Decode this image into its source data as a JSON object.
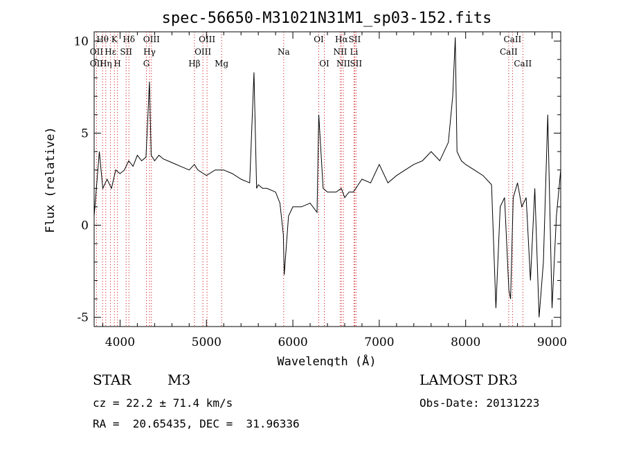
{
  "chart_data": {
    "type": "line",
    "title": "spec-56650-M31021N31M1_sp03-152.fits",
    "xlabel": "Wavelength (Å)",
    "ylabel": "Flux (relative)",
    "xlim": [
      3700,
      9100
    ],
    "ylim": [
      -5.5,
      10.5
    ],
    "x_ticks": [
      4000,
      5000,
      6000,
      7000,
      8000,
      9000
    ],
    "y_ticks": [
      -5,
      0,
      5,
      10
    ],
    "grid": false,
    "spectrum": {
      "x": [
        3700,
        3760,
        3800,
        3850,
        3900,
        3950,
        4000,
        4050,
        4100,
        4150,
        4200,
        4250,
        4300,
        4340,
        4360,
        4400,
        4450,
        4500,
        4600,
        4700,
        4800,
        4860,
        4900,
        5000,
        5100,
        5200,
        5300,
        5400,
        5500,
        5550,
        5580,
        5600,
        5650,
        5700,
        5800,
        5850,
        5890,
        5900,
        5950,
        6000,
        6100,
        6200,
        6280,
        6300,
        6350,
        6400,
        6500,
        6560,
        6600,
        6650,
        6700,
        6800,
        6900,
        7000,
        7100,
        7200,
        7300,
        7400,
        7500,
        7600,
        7700,
        7800,
        7850,
        7880,
        7900,
        7950,
        8000,
        8100,
        8200,
        8300,
        8350,
        8400,
        8450,
        8500,
        8520,
        8550,
        8600,
        8650,
        8700,
        8750,
        8800,
        8850,
        8900,
        8950,
        9000,
        9050,
        9100
      ],
      "y": [
        0.5,
        4.0,
        2.0,
        2.5,
        2.0,
        3.0,
        2.8,
        3.0,
        3.5,
        3.2,
        3.8,
        3.5,
        3.7,
        7.8,
        3.8,
        3.5,
        3.8,
        3.6,
        3.4,
        3.2,
        3.0,
        3.3,
        3.0,
        2.7,
        3.0,
        3.0,
        2.8,
        2.5,
        2.3,
        8.3,
        2.0,
        2.2,
        2.0,
        2.0,
        1.8,
        1.2,
        -0.5,
        -2.7,
        0.5,
        1.0,
        1.0,
        1.2,
        0.7,
        6.0,
        2.0,
        1.8,
        1.8,
        2.0,
        1.5,
        1.8,
        1.8,
        2.5,
        2.3,
        3.3,
        2.3,
        2.7,
        3.0,
        3.3,
        3.5,
        4.0,
        3.5,
        4.5,
        7.0,
        10.2,
        4.0,
        3.5,
        3.3,
        3.0,
        2.7,
        2.2,
        -4.5,
        1.0,
        1.5,
        -3.5,
        -4.0,
        1.5,
        2.3,
        1.0,
        1.5,
        -3.0,
        2.0,
        -5.0,
        -2.0,
        6.0,
        -4.5,
        0.5,
        3.0
      ]
    },
    "line_markers": [
      {
        "label": "Hθ",
        "wavelength": 3798,
        "row": 0
      },
      {
        "label": "OII",
        "wavelength": 3727,
        "row": 1
      },
      {
        "label": "OII",
        "wavelength": 3727,
        "row": 2
      },
      {
        "label": "Hη",
        "wavelength": 3835,
        "row": 2
      },
      {
        "label": "Hε",
        "wavelength": 3889,
        "row": 1
      },
      {
        "label": "K",
        "wavelength": 3934,
        "row": 0
      },
      {
        "label": "H",
        "wavelength": 3969,
        "row": 2
      },
      {
        "label": "Hδ",
        "wavelength": 4102,
        "row": 0
      },
      {
        "label": "SII",
        "wavelength": 4070,
        "row": 1
      },
      {
        "label": "OIII",
        "wavelength": 4363,
        "row": 0
      },
      {
        "label": "Hγ",
        "wavelength": 4341,
        "row": 1
      },
      {
        "label": "G",
        "wavelength": 4305,
        "row": 2
      },
      {
        "label": "Hβ",
        "wavelength": 4861,
        "row": 2
      },
      {
        "label": "OIII",
        "wavelength": 4959,
        "row": 1
      },
      {
        "label": "OIII",
        "wavelength": 5007,
        "row": 0
      },
      {
        "label": "Mg",
        "wavelength": 5175,
        "row": 2
      },
      {
        "label": "Na",
        "wavelength": 5894,
        "row": 1
      },
      {
        "label": "OI",
        "wavelength": 6300,
        "row": 0
      },
      {
        "label": "OI",
        "wavelength": 6364,
        "row": 2
      },
      {
        "label": "Hα",
        "wavelength": 6563,
        "row": 0
      },
      {
        "label": "NII",
        "wavelength": 6548,
        "row": 1
      },
      {
        "label": "NII",
        "wavelength": 6584,
        "row": 2
      },
      {
        "label": "SII",
        "wavelength": 6716,
        "row": 0
      },
      {
        "label": "Li",
        "wavelength": 6708,
        "row": 1
      },
      {
        "label": "SII",
        "wavelength": 6731,
        "row": 2
      },
      {
        "label": "CaII",
        "wavelength": 8542,
        "row": 0
      },
      {
        "label": "CaII",
        "wavelength": 8498,
        "row": 1
      },
      {
        "label": "CaII",
        "wavelength": 8662,
        "row": 2
      }
    ]
  },
  "info": {
    "class": "STAR",
    "subclass": "M3",
    "survey": "LAMOST DR3",
    "cz": "cz = 22.2 ± 71.4 km/s",
    "obs_date": "Obs-Date: 20131223",
    "coords": "RA =  20.65435, DEC =  31.96336"
  },
  "colors": {
    "spectrum": "#000000",
    "marker_line": "#cc0000",
    "axis": "#000000"
  }
}
